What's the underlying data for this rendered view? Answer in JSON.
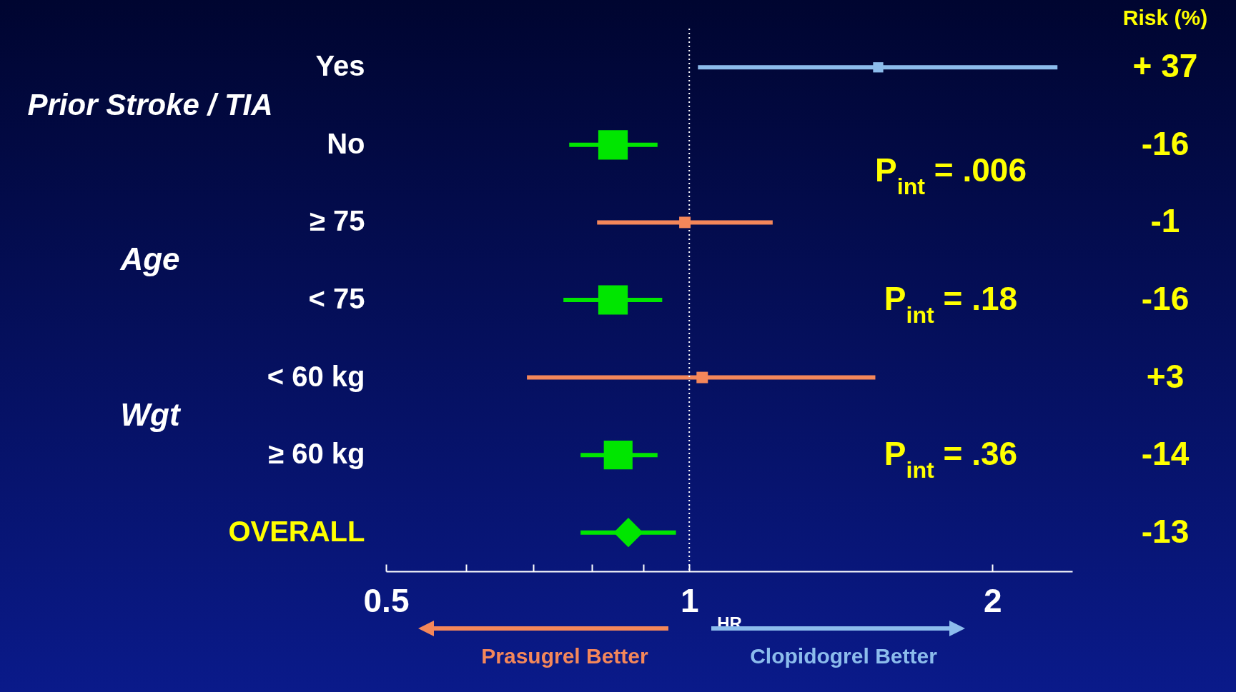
{
  "chart_data": {
    "type": "bubble",
    "orientation": "horizontal",
    "xlabel": "HR",
    "categories": [
      "Yes",
      "No",
      "≥ 75",
      "< 75",
      "< 60 kg",
      "≥ 60 kg",
      "OVERALL"
    ],
    "log": "x",
    "xlim": [
      0.5,
      2.4
    ],
    "xticks": [
      0.5,
      {
        "value": 0.6,
        "label": null
      },
      {
        "value": 0.7,
        "label": null
      },
      {
        "value": 0.8,
        "label": null
      },
      {
        "value": 0.9,
        "label": null
      },
      1,
      2
    ],
    "marker": "square",
    "series": [
      {
        "color": "#00e600",
        "values": [
          null,
          0.84,
          null,
          0.84,
          null,
          0.85,
          null
        ],
        "errors": [
          null,
          [
            0.76,
            0.93
          ],
          null,
          [
            0.75,
            0.94
          ],
          null,
          [
            0.78,
            0.93
          ],
          null
        ],
        "sizes": [
          null,
          1,
          null,
          1,
          null,
          0.95,
          null
        ]
      },
      {
        "color": "#f4875a",
        "values": [
          null,
          null,
          0.99,
          null,
          1.03,
          null,
          null
        ],
        "errors": [
          null,
          null,
          [
            0.81,
            1.21
          ],
          null,
          [
            0.69,
            1.53
          ],
          null,
          null
        ],
        "sizes": [
          null,
          null,
          0.15,
          null,
          0.15,
          null,
          null
        ]
      },
      {
        "color": "#8cbcec",
        "values": [
          1.54,
          null,
          null,
          null,
          null,
          null,
          null
        ],
        "errors": [
          [
            1.02,
            2.32
          ],
          null,
          null,
          null,
          null,
          null,
          null
        ],
        "sizes": [
          0.12,
          null,
          null,
          null,
          null,
          null,
          null
        ]
      },
      {
        "color": "#00e600",
        "marker": "diamond",
        "values": [
          null,
          null,
          null,
          null,
          null,
          null,
          0.87
        ],
        "errors": [
          null,
          null,
          null,
          null,
          null,
          null,
          [
            0.78,
            0.97
          ]
        ]
      }
    ],
    "ref_lines": [
      {
        "axis": "x",
        "value": 1,
        "color": "#ffffff",
        "line_style": "dotted"
      }
    ],
    "annotations": [
      "Prior Stroke / TIA",
      "Age",
      "Wgt",
      "Risk (%)",
      "P$_{int}$ = .006",
      "P$_{int}$ = .18",
      "P$_{int}$ = .36",
      "Prasugrel Better",
      "Clopidogrel Better",
      "+ 37",
      "-16",
      "-1",
      "-16",
      "+3",
      "-14",
      "-13"
    ]
  }
}
